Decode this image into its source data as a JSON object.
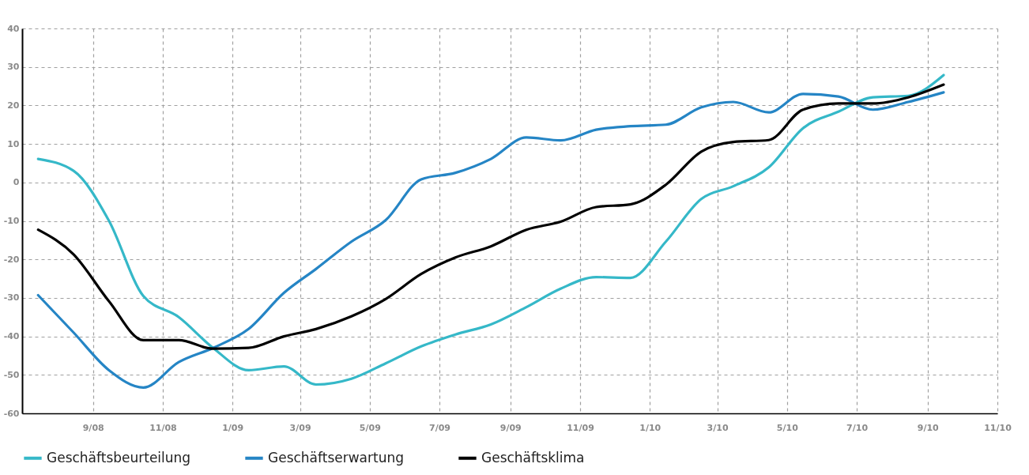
{
  "chart_data": {
    "type": "line",
    "x": [
      "2008-07-15",
      "2008-08-15",
      "2008-09-15",
      "2008-10-15",
      "2008-11-15",
      "2008-12-15",
      "2009-01-15",
      "2009-02-15",
      "2009-03-15",
      "2009-04-15",
      "2009-05-15",
      "2009-06-15",
      "2009-07-15",
      "2009-08-15",
      "2009-09-15",
      "2009-10-15",
      "2009-11-15",
      "2009-12-15",
      "2010-01-15",
      "2010-02-15",
      "2010-03-15",
      "2010-04-15",
      "2010-05-15",
      "2010-06-15",
      "2010-07-15",
      "2010-08-15",
      "2010-09-15"
    ],
    "series": [
      {
        "name": "Geschäftsbeurteilung",
        "color": "#35b8c8",
        "values": [
          6.1,
          3,
          -10,
          -29.5,
          -35,
          -43,
          -48.8,
          -47.8,
          -52.5,
          -51,
          -47,
          -42.6,
          -39.5,
          -36.9,
          -32.4,
          -27.6,
          -24.6,
          -24.8,
          -15.4,
          -4.3,
          -1,
          3.9,
          14.1,
          18.4,
          22.1,
          22.5,
          27.9
        ]
      },
      {
        "name": "Geschäftserwartung",
        "color": "#2585c5",
        "values": [
          -29.3,
          -39,
          -48.8,
          -53.3,
          -46.7,
          -43,
          -38.1,
          -28.7,
          -22.5,
          -15.4,
          -9.8,
          0.8,
          2.5,
          6.1,
          11.7,
          10.9,
          13.7,
          14.6,
          15,
          19.5,
          20.9,
          18.2,
          23,
          22.3,
          18.9,
          20.9,
          23.4
        ]
      },
      {
        "name": "Geschäftsklima",
        "color": "#000000",
        "values": [
          -12.3,
          -18.7,
          -30.9,
          -41,
          -41,
          -43.2,
          -43,
          -40,
          -38.1,
          -34.8,
          -30.3,
          -23.8,
          -19.5,
          -16.6,
          -12.3,
          -10.2,
          -6.4,
          -5.7,
          -0.6,
          8,
          10.5,
          11,
          18.9,
          20.5,
          20.5,
          22.1,
          25.4
        ]
      }
    ],
    "xlim": [
      "2008-07-01",
      "2010-11-01"
    ],
    "xticks": [
      {
        "value": "2008-09-01",
        "label": "9/08"
      },
      {
        "value": "2008-11-01",
        "label": "11/08"
      },
      {
        "value": "2009-01-01",
        "label": "1/09"
      },
      {
        "value": "2009-03-01",
        "label": "3/09"
      },
      {
        "value": "2009-05-01",
        "label": "5/09"
      },
      {
        "value": "2009-07-01",
        "label": "7/09"
      },
      {
        "value": "2009-09-01",
        "label": "9/09"
      },
      {
        "value": "2009-11-01",
        "label": "11/09"
      },
      {
        "value": "2010-01-01",
        "label": "1/10"
      },
      {
        "value": "2010-03-01",
        "label": "3/10"
      },
      {
        "value": "2010-05-01",
        "label": "5/10"
      },
      {
        "value": "2010-07-01",
        "label": "7/10"
      },
      {
        "value": "2010-09-01",
        "label": "9/10"
      },
      {
        "value": "2010-11-01",
        "label": "11/10"
      }
    ],
    "ylim": [
      -60,
      40
    ],
    "yticks": [
      -60,
      -50,
      -40,
      -30,
      -20,
      -10,
      0,
      10,
      20,
      30,
      40
    ],
    "grid": true,
    "legend": "bottom left",
    "marker": "none",
    "line_style": "solid"
  }
}
